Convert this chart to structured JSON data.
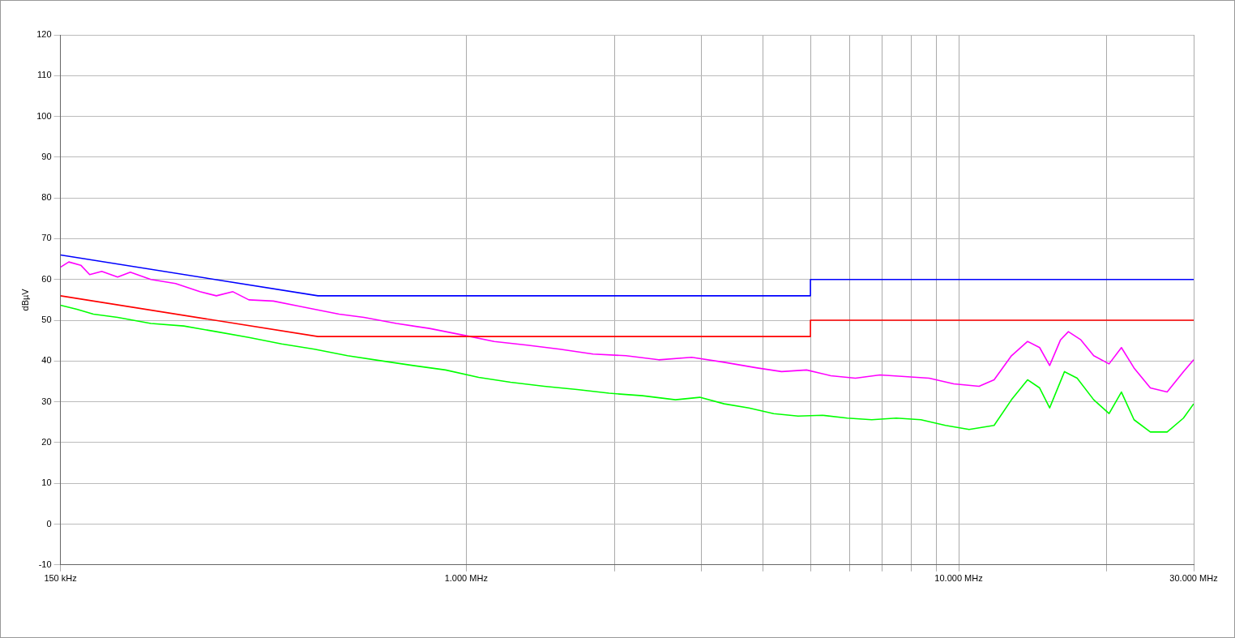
{
  "chart_data": {
    "type": "line",
    "ylabel": "dBµV",
    "log": "x",
    "grid": true,
    "legend": false,
    "marker": "none",
    "line_style": "solid",
    "xlim": [
      150,
      30000
    ],
    "ylim": [
      -10,
      120
    ],
    "xticks": [
      {
        "value": 150,
        "label": "150 kHz"
      },
      {
        "value": 1000,
        "label": "1.000 MHz"
      },
      {
        "value": 2000,
        "label": null
      },
      {
        "value": 3000,
        "label": null
      },
      {
        "value": 4000,
        "label": null
      },
      {
        "value": 5000,
        "label": null
      },
      {
        "value": 6000,
        "label": null
      },
      {
        "value": 7000,
        "label": null
      },
      {
        "value": 8000,
        "label": null
      },
      {
        "value": 9000,
        "label": null
      },
      {
        "value": 10000,
        "label": "10.000 MHz"
      },
      {
        "value": 20000,
        "label": null
      },
      {
        "value": 30000,
        "label": "30.000 MHz"
      }
    ],
    "yticks": [
      -10,
      0,
      10,
      20,
      30,
      40,
      50,
      60,
      70,
      80,
      90,
      100,
      110,
      120
    ],
    "series": [
      {
        "color": "#0000ff",
        "x": [
          150,
          500,
          5000,
          5000,
          30000
        ],
        "values": [
          66,
          56,
          56,
          60,
          60
        ]
      },
      {
        "color": "#ff0000",
        "x": [
          150,
          500,
          5000,
          5000,
          30000
        ],
        "values": [
          56,
          46,
          46,
          50,
          50
        ]
      },
      {
        "color": "#ff00ff",
        "x": [
          150,
          156,
          165,
          172,
          182,
          196,
          208,
          229,
          257,
          288,
          311,
          336,
          362,
          406,
          456,
          492,
          552,
          620,
          722,
          842,
          1000,
          1140,
          1330,
          1550,
          1810,
          2110,
          2460,
          2870,
          3340,
          3900,
          4370,
          4910,
          5500,
          6170,
          6920,
          7770,
          8710,
          9770,
          11000,
          11800,
          12800,
          13800,
          14600,
          15300,
          16100,
          16700,
          17700,
          18800,
          20200,
          21400,
          22700,
          24500,
          26500,
          28600,
          30000
        ],
        "values": [
          63,
          64.3,
          63.5,
          61.2,
          62,
          60.6,
          61.8,
          60,
          59,
          57,
          56,
          57,
          55,
          54.7,
          53.5,
          52.7,
          51.5,
          50.7,
          49.2,
          48,
          46.2,
          44.8,
          43.9,
          42.9,
          41.7,
          41.3,
          40.3,
          40.9,
          39.7,
          38.3,
          37.4,
          37.8,
          36.4,
          35.8,
          36.6,
          36.2,
          35.8,
          34.4,
          33.8,
          35.4,
          41.3,
          44.8,
          43.3,
          38.9,
          45.2,
          47.2,
          45.2,
          41.3,
          39.3,
          43.3,
          38.3,
          33.4,
          32.4,
          37.4,
          40.3
        ]
      },
      {
        "color": "#00ff00",
        "x": [
          150,
          162,
          175,
          196,
          229,
          267,
          311,
          362,
          422,
          492,
          574,
          669,
          780,
          908,
          1060,
          1230,
          1440,
          1680,
          1950,
          2280,
          2660,
          2980,
          3340,
          3750,
          4210,
          4720,
          5290,
          5940,
          6660,
          7470,
          8380,
          9400,
          10500,
          11800,
          12800,
          13800,
          14600,
          15300,
          16400,
          17400,
          18800,
          20200,
          21400,
          22700,
          24500,
          26500,
          28600,
          30000
        ],
        "values": [
          53.7,
          52.7,
          51.5,
          50.7,
          49.2,
          48.6,
          47.2,
          45.8,
          44.2,
          42.9,
          41.3,
          40.1,
          38.9,
          37.8,
          36,
          34.8,
          33.8,
          33,
          32.1,
          31.5,
          30.5,
          31.1,
          29.5,
          28.5,
          27.1,
          26.5,
          26.7,
          26,
          25.6,
          26,
          25.6,
          24.2,
          23.2,
          24.2,
          30.5,
          35.4,
          33.4,
          28.5,
          37.4,
          35.8,
          30.5,
          27.1,
          32.4,
          25.6,
          22.6,
          22.6,
          26,
          29.5
        ]
      }
    ]
  }
}
